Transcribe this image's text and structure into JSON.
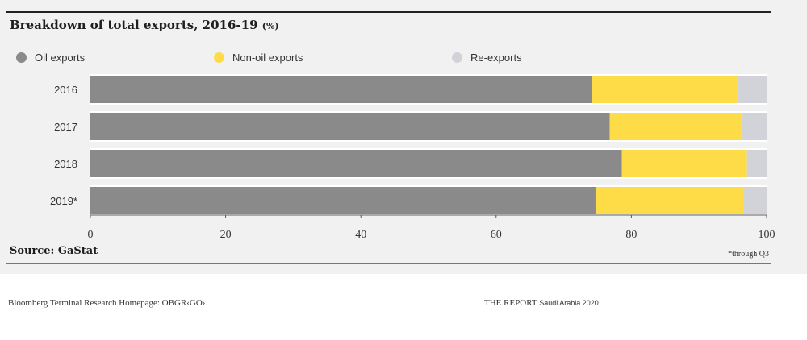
{
  "chart_data": {
    "type": "bar",
    "orientation": "horizontal",
    "stacked": true,
    "title": "Breakdown of total exports, 2016-19",
    "title_unit": "(%)",
    "categories": [
      "2016",
      "2017",
      "2018",
      "2019*"
    ],
    "series": [
      {
        "name": "Oil exports",
        "color": "#8a8a8a",
        "values": [
          74.2,
          76.8,
          78.6,
          74.7
        ]
      },
      {
        "name": "Non-oil exports",
        "color": "#fedc47",
        "values": [
          21.4,
          19.4,
          18.5,
          21.9
        ]
      },
      {
        "name": "Re-exports",
        "color": "#d2d3d9",
        "values": [
          4.4,
          3.8,
          2.9,
          3.4
        ]
      }
    ],
    "xlim": [
      0,
      100
    ],
    "xticks": [
      0,
      20,
      40,
      60,
      80,
      100
    ],
    "legend_position": "top",
    "grid": false
  },
  "source": "Source: GaStat",
  "footnote": "*through Q3",
  "footer": {
    "left": "Bloomberg Terminal Research Homepage: OBGR‹GO›",
    "right_main": "THE REPORT",
    "right_small": "Saudi Arabia 2020"
  }
}
